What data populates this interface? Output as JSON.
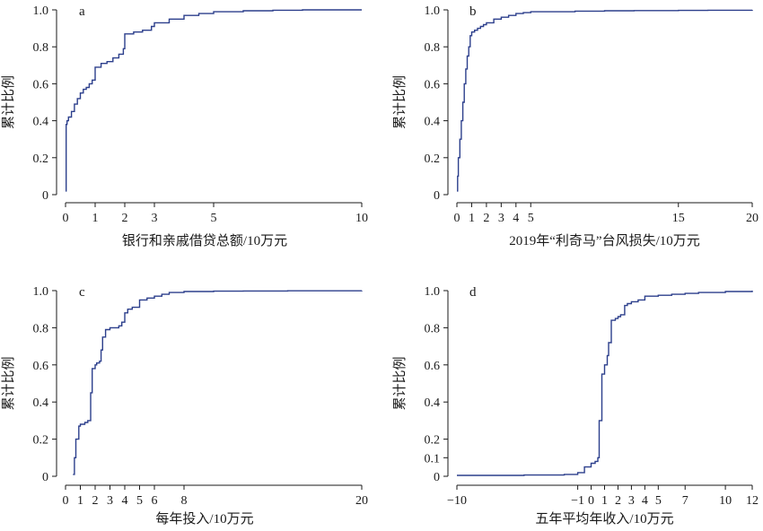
{
  "chart_data": [
    {
      "type": "line",
      "panel_label": "a",
      "xlabel": "银行和亲戚借贷总额/10万元",
      "ylabel": "累计比例",
      "xticks": [
        0,
        1,
        2,
        3,
        5,
        10
      ],
      "xtick_labels": [
        "0",
        "1",
        "2",
        "3",
        "5",
        "10"
      ],
      "yticks": [
        0,
        0.2,
        0.4,
        0.6,
        0.8,
        1.0
      ],
      "ytick_labels": [
        "0",
        "0.2",
        "0.4",
        "0.6",
        "0.8",
        "1.0"
      ],
      "xlim": [
        -0.3,
        10.2
      ],
      "ylim": [
        0,
        1.0
      ],
      "grid": false,
      "series": [
        {
          "x": [
            0,
            0.02,
            0.05,
            0.1,
            0.2,
            0.3,
            0.4,
            0.5,
            0.6,
            0.7,
            0.8,
            0.9,
            1.0,
            1.2,
            1.4,
            1.6,
            1.8,
            1.95,
            2.0,
            2.3,
            2.6,
            2.9,
            3.0,
            3.5,
            4.0,
            4.5,
            5.0,
            6.0,
            7.0,
            8.0,
            9.0,
            10.0
          ],
          "y": [
            0.02,
            0.38,
            0.4,
            0.42,
            0.45,
            0.49,
            0.52,
            0.55,
            0.57,
            0.58,
            0.6,
            0.62,
            0.69,
            0.71,
            0.72,
            0.74,
            0.76,
            0.79,
            0.87,
            0.88,
            0.89,
            0.91,
            0.93,
            0.95,
            0.97,
            0.98,
            0.99,
            0.995,
            0.998,
            1.0,
            1.0,
            1.0
          ]
        }
      ]
    },
    {
      "type": "line",
      "panel_label": "b",
      "xlabel": "2019年“利奇马”台风损失/10万元",
      "ylabel": "累计比例",
      "xticks": [
        0,
        1,
        2,
        3,
        4,
        5,
        15,
        20
      ],
      "xtick_labels": [
        "0",
        "1",
        "2",
        "3",
        "4",
        "5",
        "15",
        "20"
      ],
      "yticks": [
        0,
        0.2,
        0.4,
        0.6,
        0.8,
        1.0
      ],
      "ytick_labels": [
        "0",
        "0.2",
        "0.4",
        "0.6",
        "0.8",
        "1.0"
      ],
      "xlim": [
        -0.5,
        20.2
      ],
      "ylim": [
        0,
        1.0
      ],
      "grid": false,
      "series": [
        {
          "x": [
            0,
            0.05,
            0.1,
            0.2,
            0.3,
            0.4,
            0.5,
            0.6,
            0.7,
            0.8,
            0.9,
            1.0,
            1.2,
            1.4,
            1.6,
            1.8,
            2.0,
            2.5,
            3.0,
            3.5,
            4.0,
            4.5,
            5.0,
            6.0,
            8.0,
            10.0,
            12.0,
            15.0,
            17.0,
            20.0
          ],
          "y": [
            0.02,
            0.1,
            0.2,
            0.3,
            0.4,
            0.5,
            0.6,
            0.68,
            0.75,
            0.8,
            0.86,
            0.88,
            0.89,
            0.9,
            0.91,
            0.92,
            0.93,
            0.95,
            0.96,
            0.97,
            0.98,
            0.985,
            0.99,
            0.99,
            0.993,
            0.995,
            0.996,
            0.997,
            0.998,
            1.0
          ]
        }
      ]
    },
    {
      "type": "line",
      "panel_label": "c",
      "xlabel": "每年投入/10万元",
      "ylabel": "累计比例",
      "xticks": [
        0,
        1,
        2,
        3,
        4,
        5,
        6,
        8,
        20
      ],
      "xtick_labels": [
        "0",
        "1",
        "2",
        "3",
        "4",
        "5",
        "6",
        "8",
        "20"
      ],
      "yticks": [
        0,
        0.2,
        0.4,
        0.6,
        0.8,
        1.0
      ],
      "ytick_labels": [
        "0",
        "0.2",
        "0.4",
        "0.6",
        "0.8",
        "1.0"
      ],
      "xlim": [
        -0.3,
        20.2
      ],
      "ylim": [
        0,
        1.0
      ],
      "grid": false,
      "series": [
        {
          "x": [
            0.5,
            0.6,
            0.7,
            0.9,
            1.0,
            1.3,
            1.5,
            1.7,
            1.8,
            2.0,
            2.1,
            2.3,
            2.4,
            2.5,
            2.7,
            3.0,
            3.4,
            3.6,
            3.8,
            4.0,
            4.2,
            4.5,
            5.0,
            5.5,
            6.0,
            6.5,
            7.0,
            8.0,
            10.0,
            12.0,
            15.0,
            20.0
          ],
          "y": [
            0.01,
            0.1,
            0.2,
            0.27,
            0.28,
            0.29,
            0.3,
            0.45,
            0.58,
            0.6,
            0.61,
            0.62,
            0.68,
            0.75,
            0.79,
            0.8,
            0.8,
            0.81,
            0.83,
            0.88,
            0.9,
            0.91,
            0.95,
            0.96,
            0.97,
            0.98,
            0.99,
            0.995,
            0.997,
            0.998,
            0.999,
            1.0
          ]
        }
      ]
    },
    {
      "type": "line",
      "panel_label": "d",
      "xlabel": "五年平均年收入/10万元",
      "ylabel": "累计比例",
      "xticks": [
        -10,
        -1,
        0,
        1,
        2,
        3,
        4,
        5,
        7,
        10,
        12
      ],
      "xtick_labels": [
        "−10",
        "−1",
        "0",
        "1",
        "2",
        "3",
        "4",
        "5",
        "7",
        "10",
        "12"
      ],
      "yticks": [
        0,
        0.1,
        0.2,
        0.4,
        0.6,
        0.8,
        1.0
      ],
      "ytick_labels": [
        "0",
        "0.1",
        "0.2",
        "0.4",
        "0.6",
        "0.8",
        "1.0"
      ],
      "xlim": [
        -10.5,
        12.3
      ],
      "ylim": [
        0,
        1.0
      ],
      "grid": false,
      "series": [
        {
          "x": [
            -10,
            -5,
            -2,
            -1,
            -0.5,
            0,
            0.3,
            0.5,
            0.6,
            0.8,
            1.0,
            1.2,
            1.3,
            1.5,
            1.8,
            2.0,
            2.2,
            2.5,
            2.7,
            3.0,
            3.5,
            4.0,
            5.0,
            6.0,
            7.0,
            8.0,
            10.0,
            12.0
          ],
          "y": [
            0.005,
            0.007,
            0.01,
            0.02,
            0.05,
            0.07,
            0.08,
            0.1,
            0.3,
            0.55,
            0.6,
            0.65,
            0.72,
            0.84,
            0.85,
            0.86,
            0.87,
            0.92,
            0.93,
            0.94,
            0.95,
            0.97,
            0.975,
            0.98,
            0.985,
            0.99,
            0.995,
            1.0
          ]
        }
      ]
    }
  ]
}
